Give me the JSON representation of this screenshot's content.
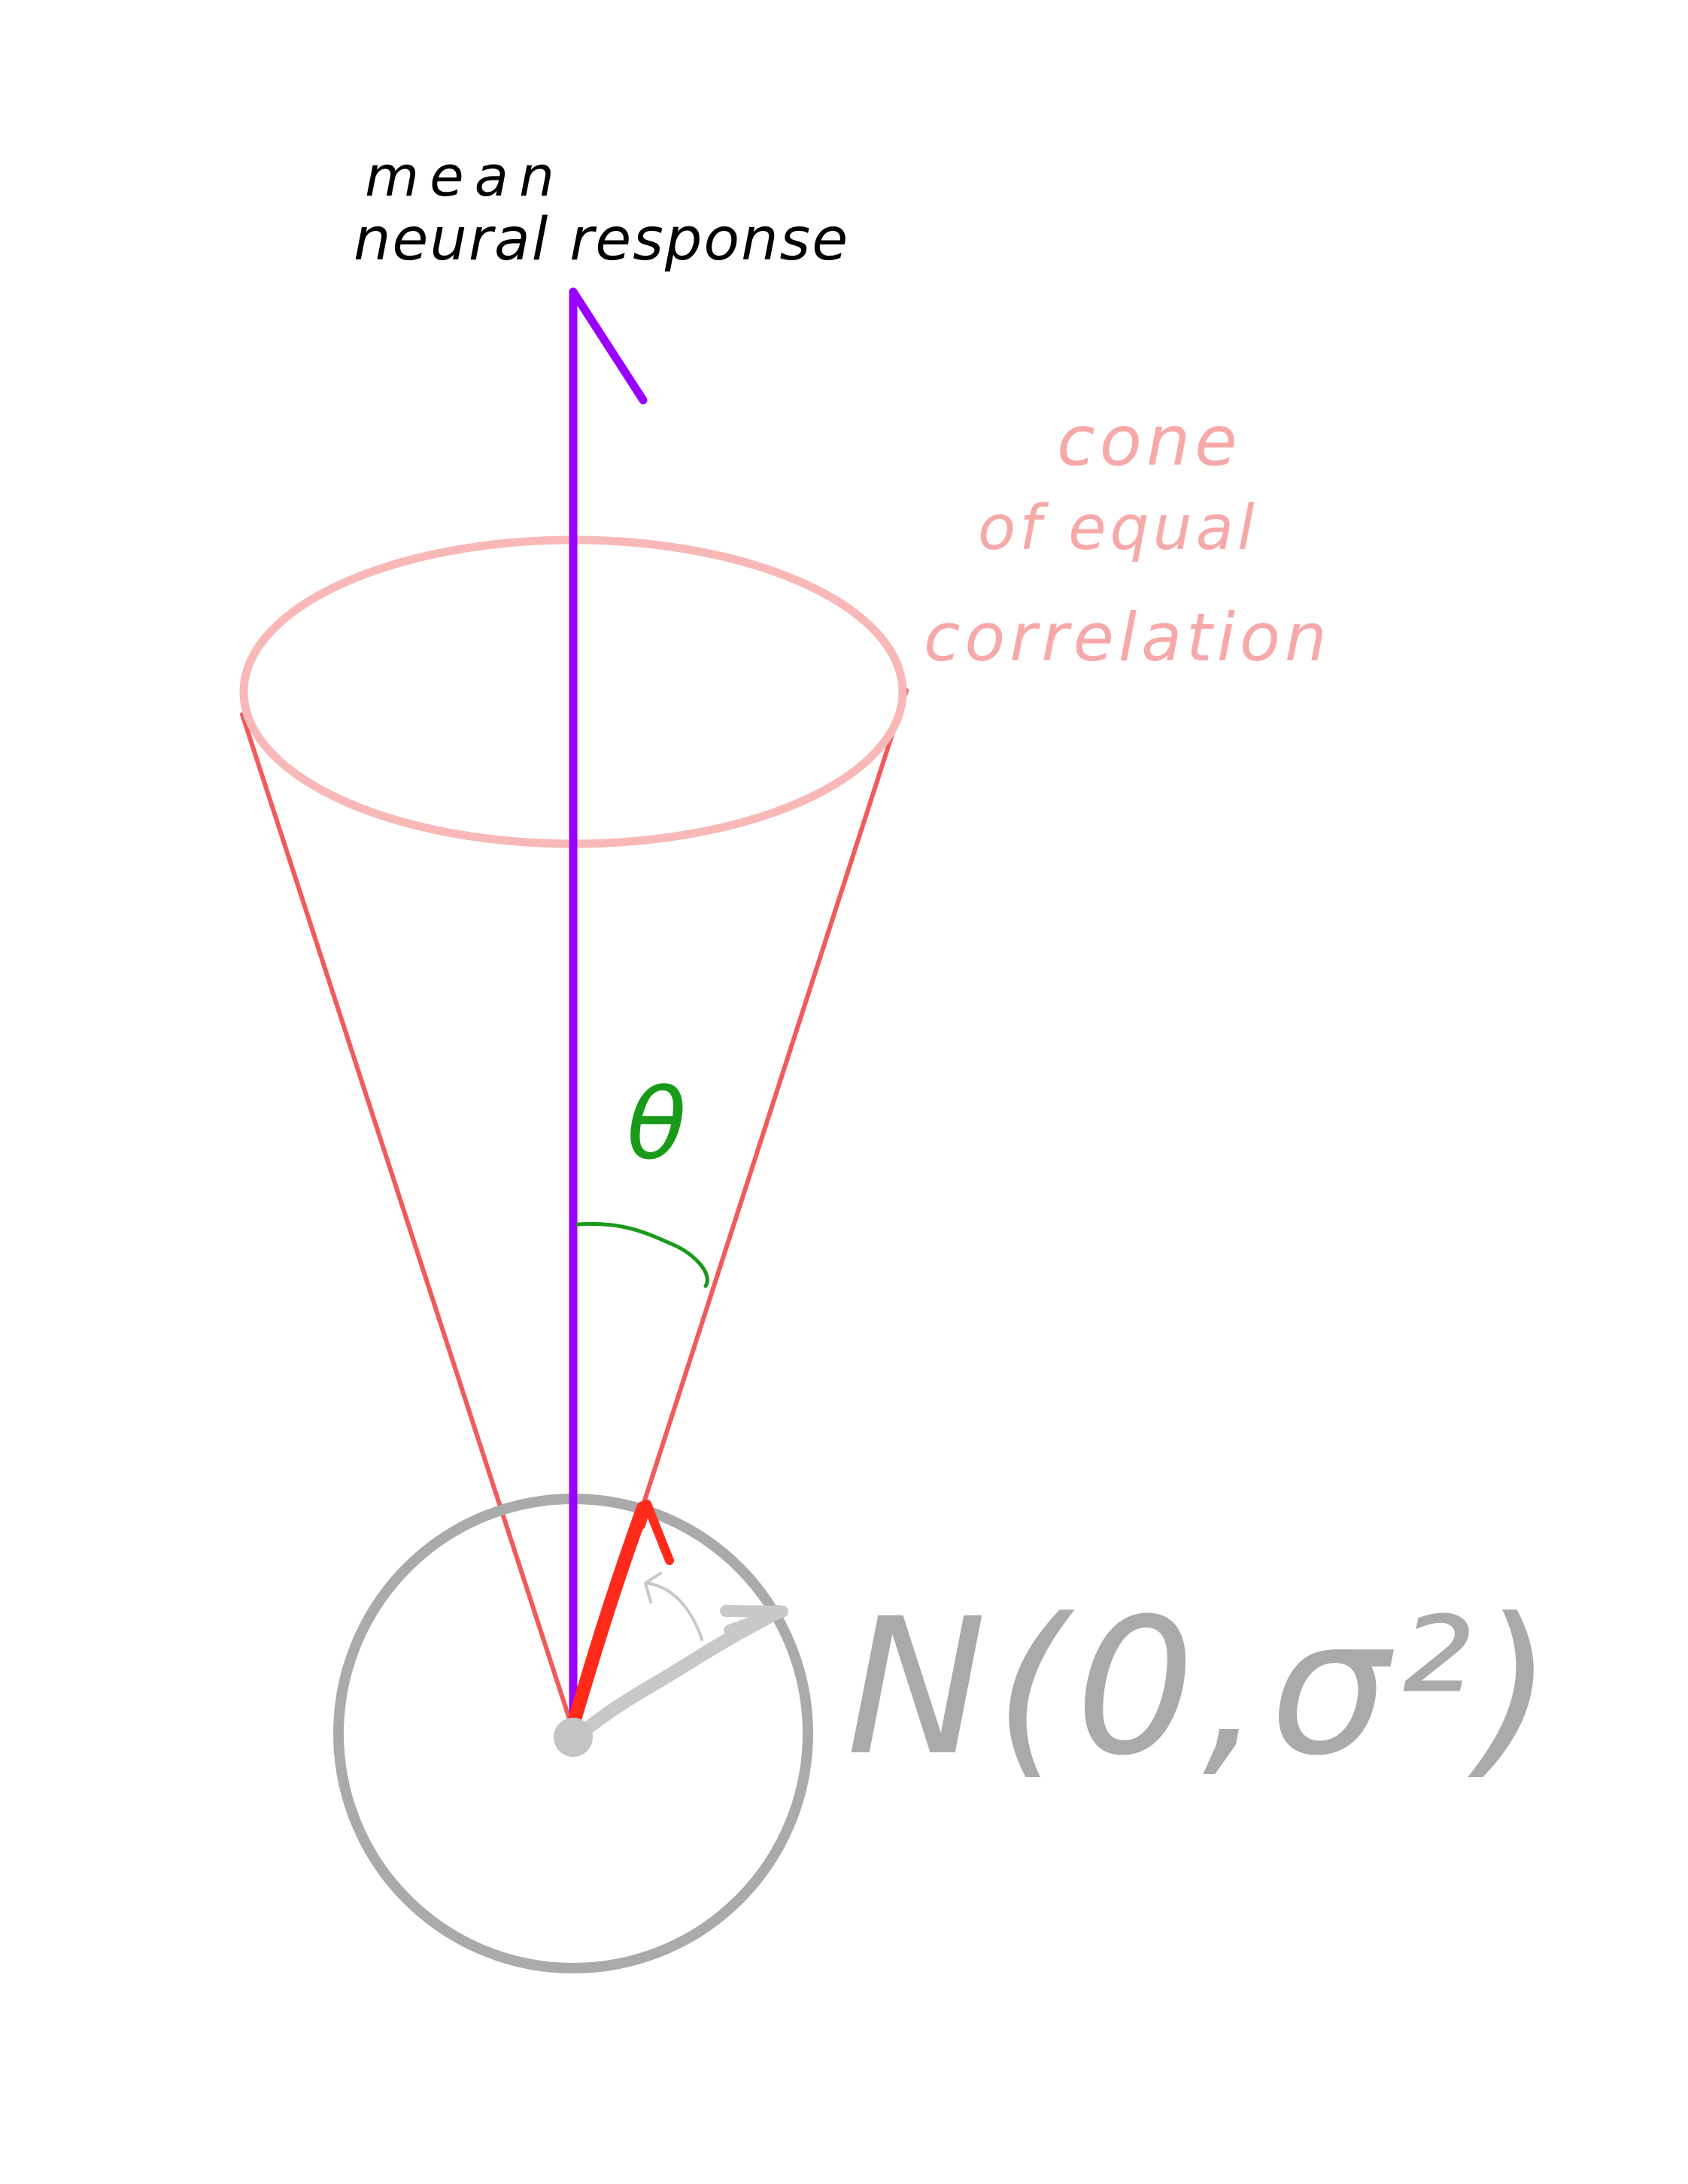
{
  "labels": {
    "mean_line1": "mean",
    "mean_line2": "neural response",
    "cone_line1": "cone",
    "cone_line2": "of equal",
    "cone_line3": "correlation",
    "theta": "θ",
    "noise": "N(0,σ²)"
  },
  "colors": {
    "mean_vector": "#9900ff",
    "cone_outline": "#f25a5a",
    "cone_rim": "#f9b8b8",
    "cone_label": "#f7a8a8",
    "angle": "#1a9a1a",
    "sample_vector": "#ff2a1a",
    "noise_circle": "#aaaaaa",
    "noise_vector": "#c8c8c8",
    "noise_label": "#aaaaaa",
    "text": "#000000"
  }
}
